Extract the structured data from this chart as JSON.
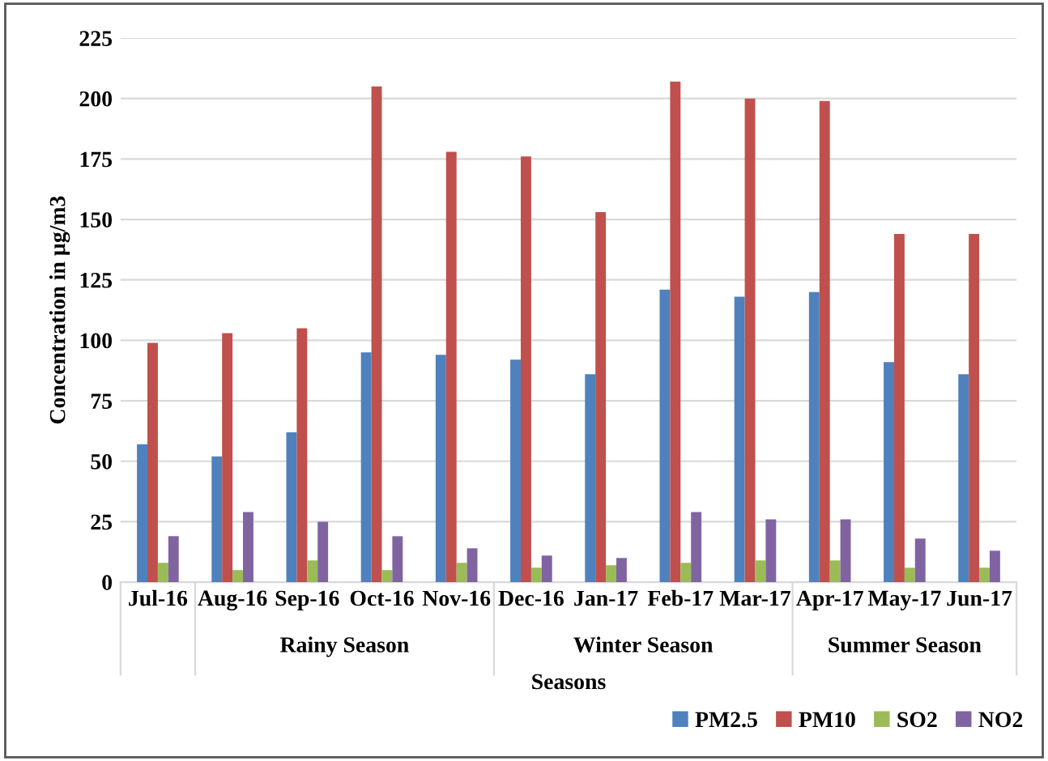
{
  "chart_data": {
    "type": "bar",
    "xlabel": "Seasons",
    "ylabel": "Concentration in µg/m3",
    "categories": [
      "Jul-16",
      "Aug-16",
      "Sep-16",
      "Oct-16",
      "Nov-16",
      "Dec-16",
      "Jan-17",
      "Feb-17",
      "Mar-17",
      "Apr-17",
      "May-17",
      "Jun-17"
    ],
    "series": [
      {
        "name": "PM2.5",
        "color": "#4f81bd",
        "values": [
          57,
          52,
          62,
          95,
          94,
          92,
          86,
          121,
          118,
          120,
          91,
          86
        ]
      },
      {
        "name": "PM10",
        "color": "#c0504d",
        "values": [
          99,
          103,
          105,
          205,
          178,
          176,
          153,
          207,
          200,
          199,
          144,
          144
        ]
      },
      {
        "name": "SO2",
        "color": "#9bbb59",
        "values": [
          8,
          5,
          9,
          5,
          8,
          6,
          7,
          8,
          9,
          9,
          6,
          6
        ]
      },
      {
        "name": "NO2",
        "color": "#8064a2",
        "values": [
          19,
          29,
          25,
          19,
          14,
          11,
          10,
          29,
          26,
          26,
          18,
          13
        ]
      }
    ],
    "annotations": [
      "Rainy Season",
      "Winter Season",
      "Summer Season"
    ],
    "ylim": [
      0,
      225
    ],
    "yticks": [
      0,
      25,
      50,
      75,
      100,
      125,
      150,
      175,
      200,
      225
    ],
    "grid": "y",
    "legend": "bottom right"
  }
}
